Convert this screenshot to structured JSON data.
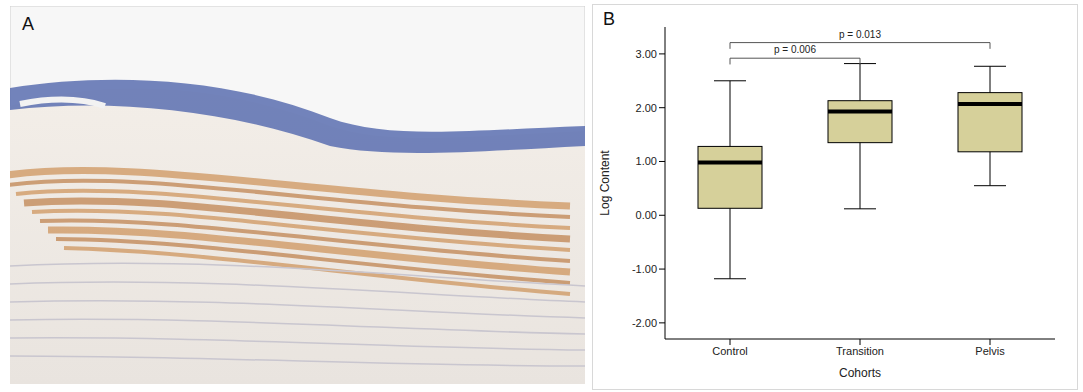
{
  "image_panel": {
    "label": "A"
  },
  "chart_data": {
    "type": "box",
    "panel_label": "B",
    "y_label": "Log Content",
    "x_label": "Cohorts",
    "categories": [
      "Control",
      "Transition",
      "Pelvis"
    ],
    "min": [
      -1.18,
      0.12,
      0.55
    ],
    "q1": [
      0.13,
      1.35,
      1.18
    ],
    "median": [
      0.98,
      1.93,
      2.07
    ],
    "q3": [
      1.28,
      2.13,
      2.28
    ],
    "max": [
      2.5,
      2.82,
      2.77
    ],
    "color": "#d6d09a",
    "ylim": [
      -2.3,
      3.5
    ],
    "yticks": [
      {
        "value": -2,
        "label": "-2.00"
      },
      {
        "value": -1,
        "label": "-1.00"
      },
      {
        "value": 0,
        "label": "0.00"
      },
      {
        "value": 1,
        "label": "1.00"
      },
      {
        "value": 2,
        "label": "2.00"
      },
      {
        "value": 3,
        "label": "3.00"
      }
    ],
    "annotations": [
      {
        "text": "p = 0.006",
        "from": "Control",
        "to": "Transition"
      },
      {
        "text": "p = 0.013",
        "from": "Control",
        "to": "Pelvis"
      }
    ]
  }
}
